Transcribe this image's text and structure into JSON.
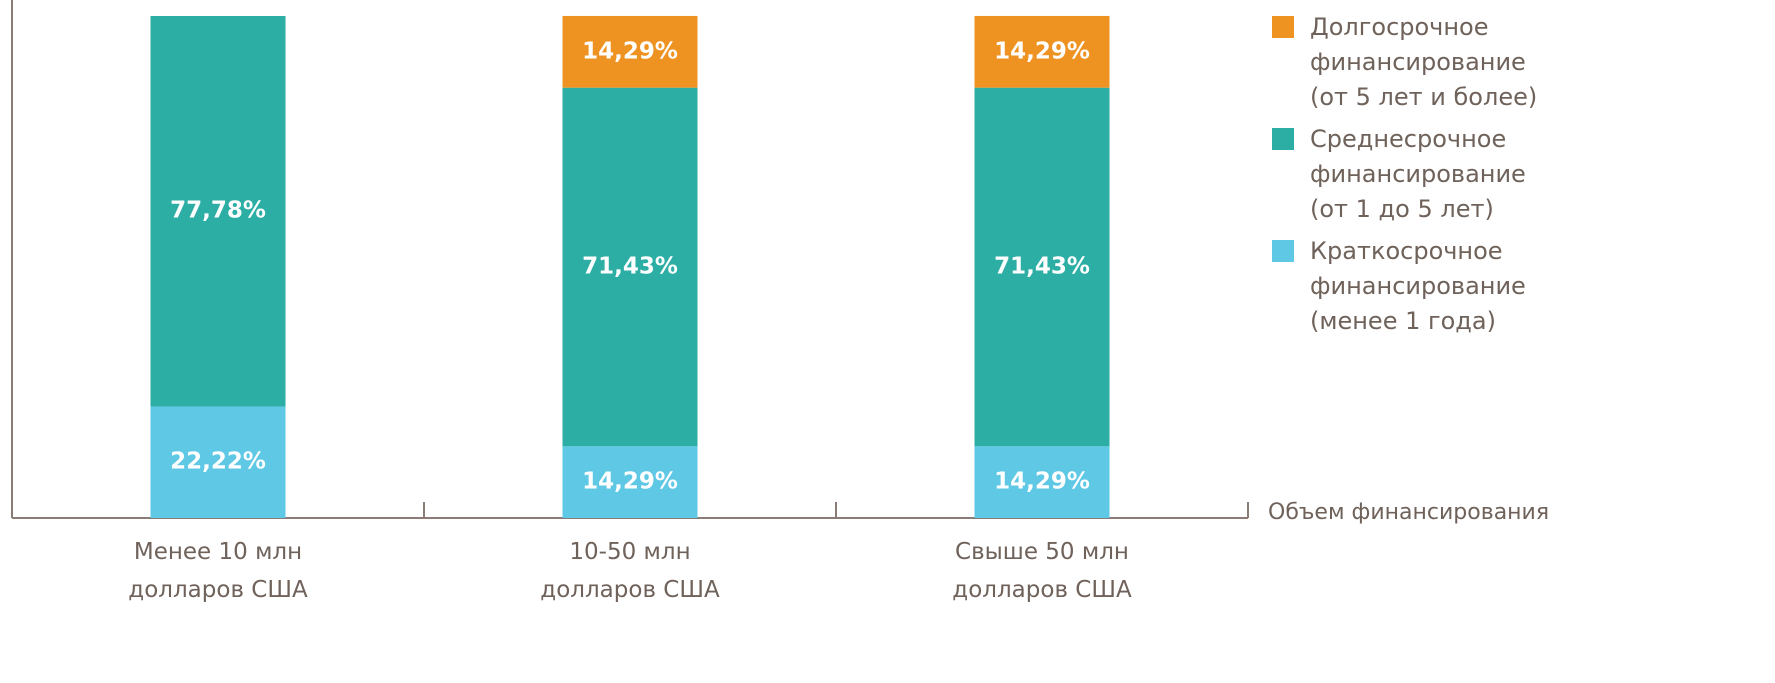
{
  "chart_data": {
    "type": "stacked_bar",
    "categories": [
      "Менее 10 млн\nдолларов США",
      "10-50 млн\nдолларов США",
      "Свыше 50 млн\nдолларов США"
    ],
    "series": [
      {
        "name": "Краткосрочное\nфинансирование\n(менее 1 года)",
        "color": "#5ec8e5",
        "values": [
          22.22,
          14.29,
          14.29
        ],
        "value_labels": [
          "22,22%",
          "14,29%",
          "14,29%"
        ]
      },
      {
        "name": "Среднесрочное\nфинансирование\n(от 1 до 5 лет)",
        "color": "#2daea5",
        "values": [
          77.78,
          71.43,
          71.43
        ],
        "value_labels": [
          "77,78%",
          "71,43%",
          "71,43%"
        ]
      },
      {
        "name": "Долгосрочное\nфинансирование\n(от 5 лет и более)",
        "color": "#ee9322",
        "values": [
          null,
          14.29,
          14.29
        ],
        "value_labels": [
          null,
          "14,29%",
          "14,29%"
        ]
      }
    ],
    "xlabel": "Объем финансирования",
    "ylim": [
      0,
      100
    ],
    "legend": "right"
  }
}
